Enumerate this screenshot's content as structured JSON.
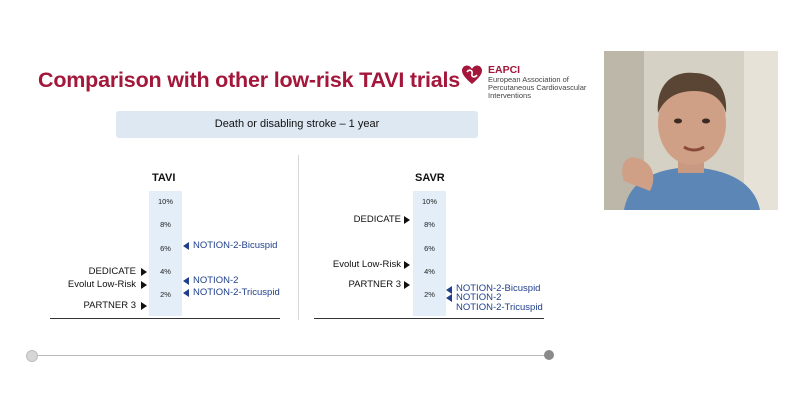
{
  "slide": {
    "title": "Comparison with other low-risk TAVI trials",
    "banner": "Death or disabling stroke – 1 year",
    "logo": {
      "abbr": "EAPCI",
      "full": "European Association of Percutaneous Cardiovascular Interventions"
    },
    "colors": {
      "title": "#a3173a",
      "banner": "#dde8f3",
      "column": "#e3eef8",
      "notion": "#1f3f8a"
    },
    "ticks": [
      "10%",
      "8%",
      "6%",
      "4%",
      "2%"
    ],
    "tavi": {
      "title": "TAVI",
      "left_labels": [
        "DEDICATE",
        "Evolut Low-Risk",
        "PARTNER 3"
      ],
      "right_labels": [
        "NOTION-2-Bicuspid",
        "NOTION-2",
        "NOTION-2-Tricuspid"
      ]
    },
    "savr": {
      "title": "SAVR",
      "left_labels": [
        "DEDICATE",
        "Evolut Low-Risk",
        "PARTNER 3"
      ],
      "right_labels": [
        "NOTION-2-Bicuspid",
        "NOTION-2",
        "NOTION-2-Tricuspid"
      ]
    }
  },
  "player": {
    "webcam_icon": "presenter-video-feed",
    "progress": 1.0
  }
}
